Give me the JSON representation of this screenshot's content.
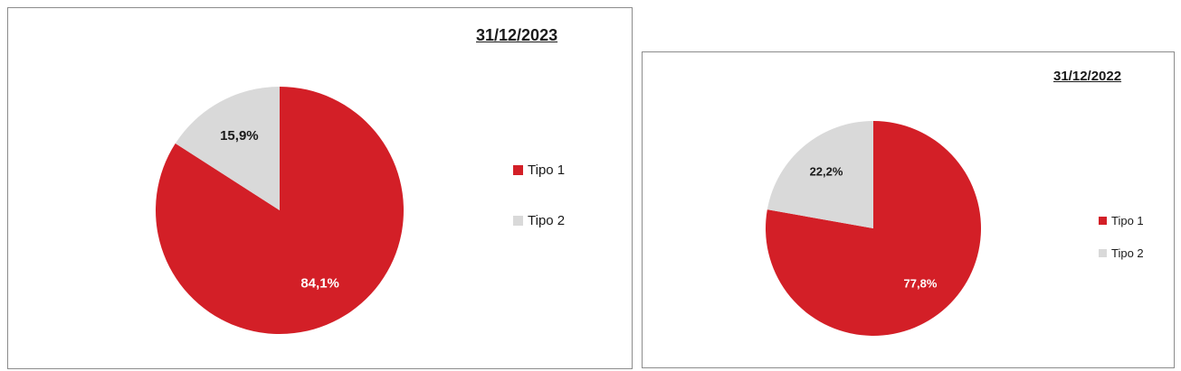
{
  "chart_data": [
    {
      "type": "pie",
      "title": "31/12/2023",
      "categories": [
        "Tipo 1",
        "Tipo 2"
      ],
      "values": [
        84.1,
        15.9
      ],
      "labels": [
        "84,1%",
        "15,9%"
      ],
      "colors": [
        "#d31f27",
        "#d9d9d9"
      ],
      "label_colors": [
        "#ffffff",
        "#1a1a1a"
      ],
      "legend": {
        "position": "right",
        "entries": [
          "Tipo 1",
          "Tipo 2"
        ]
      }
    },
    {
      "type": "pie",
      "title": "31/12/2022",
      "categories": [
        "Tipo 1",
        "Tipo 2"
      ],
      "values": [
        77.8,
        22.2
      ],
      "labels": [
        "77,8%",
        "22,2%"
      ],
      "colors": [
        "#d31f27",
        "#d9d9d9"
      ],
      "label_colors": [
        "#ffffff",
        "#1a1a1a"
      ],
      "legend": {
        "position": "right",
        "entries": [
          "Tipo 1",
          "Tipo 2"
        ]
      }
    }
  ]
}
